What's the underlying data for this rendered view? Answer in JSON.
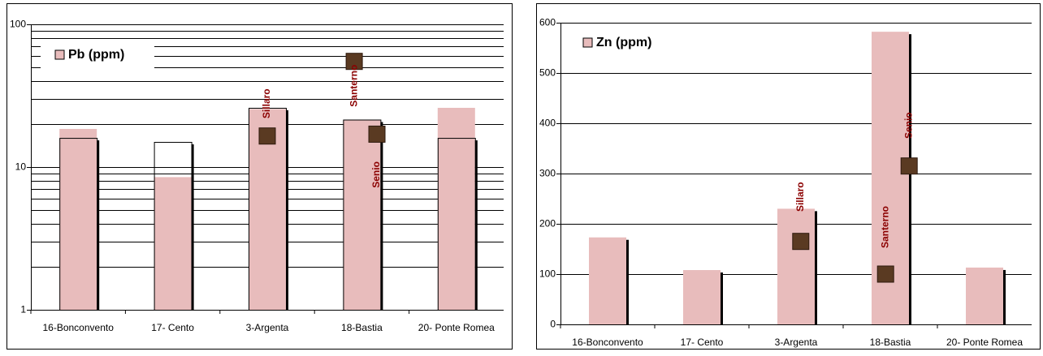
{
  "chart_data": [
    {
      "type": "bar",
      "log_scale": true,
      "minor_grid": true,
      "grid": true,
      "categories": [
        "16-Bonconvento",
        "17- Cento",
        "3-Argenta",
        "18-Bastia",
        "20- Ponte Romea"
      ],
      "series": [
        {
          "name": "Pb (ppm)",
          "color": "#e8bcbc",
          "values": [
            18.5,
            8.5,
            25.5,
            21.5,
            26
          ]
        },
        {
          "color": "#ffffff",
          "values": [
            16,
            15,
            26,
            21.5,
            16
          ]
        }
      ],
      "markers": [
        {
          "label": "Sillaro",
          "value": 16.5
        },
        {
          "label": "Santerno",
          "value": 55
        },
        {
          "label": "Senio",
          "value": 17
        }
      ],
      "ylim": [
        1,
        100
      ],
      "yticks": [
        1,
        10,
        100
      ]
    },
    {
      "type": "bar",
      "log_scale": false,
      "grid": true,
      "categories": [
        "16-Bonconvento",
        "17- Cento",
        "3-Argenta",
        "18-Bastia",
        "20- Ponte Romea"
      ],
      "series": [
        {
          "name": "Zn (ppm)",
          "color": "#e8bcbc",
          "values": [
            173,
            108,
            230,
            582,
            113
          ]
        }
      ],
      "markers": [
        {
          "label": "Sillaro",
          "value": 165
        },
        {
          "label": "Santerno",
          "value": 100
        },
        {
          "label": "Senio",
          "value": 315
        }
      ],
      "ylim": [
        0,
        600
      ],
      "yticks": [
        0,
        100,
        200,
        300,
        400,
        500,
        600
      ]
    }
  ]
}
